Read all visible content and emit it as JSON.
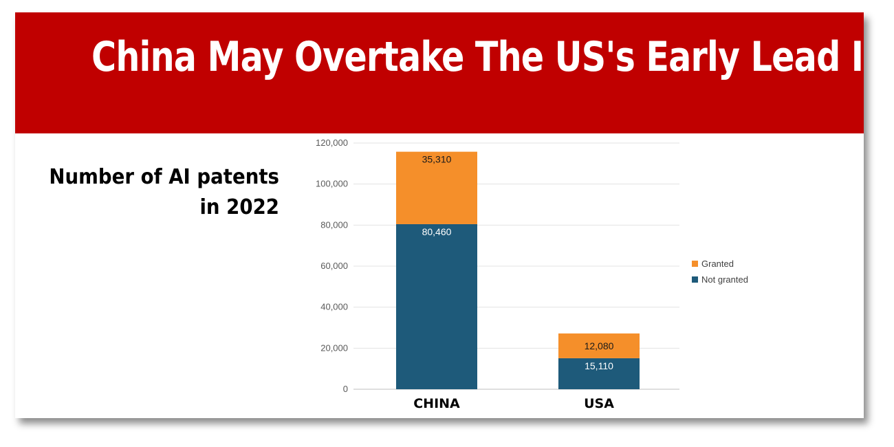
{
  "header": {
    "title": "China May Overtake The US's Early Lead In AI"
  },
  "subtitle": {
    "line1": "Number of AI patents",
    "line2": "in 2022"
  },
  "colors": {
    "banner": "#c00000",
    "granted": "#f58f2a",
    "not_granted": "#1e5a7a"
  },
  "chart_data": {
    "type": "bar",
    "stacked": true,
    "categories": [
      "CHINA",
      "USA"
    ],
    "series": [
      {
        "name": "Not granted",
        "values": [
          80460,
          15110
        ],
        "labels": [
          "80,460",
          "15,110"
        ],
        "color": "#1e5a7a",
        "label_color": "#ffffff"
      },
      {
        "name": "Granted",
        "values": [
          35310,
          12080
        ],
        "labels": [
          "35,310",
          "12,080"
        ],
        "color": "#f58f2a",
        "label_color": "#1a1a1a"
      }
    ],
    "ylim": [
      0,
      120000
    ],
    "yticks": [
      0,
      20000,
      40000,
      60000,
      80000,
      100000,
      120000
    ],
    "ytick_labels": [
      "0",
      "20,000",
      "40,000",
      "60,000",
      "80,000",
      "100,000",
      "120,000"
    ],
    "legend": {
      "placement": "right",
      "order": [
        "Granted",
        "Not granted"
      ]
    },
    "grid": true
  }
}
